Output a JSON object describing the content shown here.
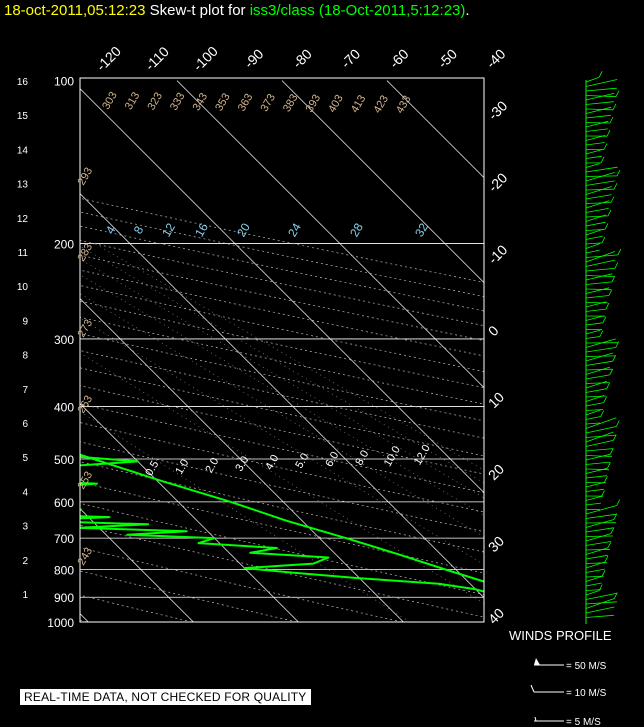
{
  "title": {
    "timestamp": "18-oct-2011,05:12:23",
    "prefix": "Skew-t plot for",
    "station": "iss3/class (18-Oct-2011,5:12:23)",
    "suffix": "."
  },
  "disclaimer": "REAL-TIME DATA, NOT CHECKED FOR QUALITY",
  "colors": {
    "sounding": "#00ff00",
    "text_yellow": "#ffff00",
    "isotherm": "#ffffff",
    "adiabat_label": "#d2b48c",
    "mixing_label": "#87ceeb"
  },
  "chart_data": {
    "type": "line",
    "pressure_ticks": [
      "100",
      "200",
      "300",
      "400",
      "500",
      "600",
      "700",
      "800",
      "900",
      "1000"
    ],
    "height_ticks": [
      "1",
      "2",
      "3",
      "4",
      "5",
      "6",
      "7",
      "8",
      "9",
      "10",
      "11",
      "12",
      "13",
      "14",
      "15",
      "16"
    ],
    "top_temp_labels": [
      "-120",
      "-110",
      "-100",
      "-90",
      "-80",
      "-70",
      "-60",
      "-50",
      "-40"
    ],
    "right_temp_labels": [
      "-30",
      "-20",
      "-10",
      "0",
      "10",
      "20",
      "30",
      "40"
    ],
    "dry_adiabat_labels": [
      "243",
      "253",
      "263",
      "273",
      "283",
      "293",
      "303",
      "313",
      "323",
      "333",
      "343",
      "353",
      "363",
      "373",
      "383",
      "393",
      "403",
      "413",
      "423",
      "433"
    ],
    "mixing_ratio_labels": [
      "4",
      "8",
      "12",
      "16",
      "20",
      "24",
      "28",
      "32"
    ],
    "moist_labels": [
      "0.5",
      "1.0",
      "2.0",
      "3.0",
      "4.0",
      "5.0",
      "6.0",
      "8.0",
      "10.0",
      "12.0"
    ],
    "series": [
      {
        "role": "temperature",
        "points": [
          [
            1000,
            23
          ],
          [
            980,
            20
          ],
          [
            950,
            17.5
          ],
          [
            930,
            15.5
          ],
          [
            900,
            15
          ],
          [
            880,
            13.5
          ],
          [
            850,
            12
          ],
          [
            800,
            9
          ],
          [
            750,
            6
          ],
          [
            700,
            2.5
          ],
          [
            650,
            -1.5
          ],
          [
            600,
            -5
          ],
          [
            550,
            -9.5
          ],
          [
            500,
            -14
          ],
          [
            450,
            -19
          ],
          [
            400,
            -25
          ],
          [
            350,
            -32
          ],
          [
            300,
            -39
          ],
          [
            250,
            -47
          ],
          [
            200,
            -55
          ],
          [
            180,
            -57
          ],
          [
            150,
            -60
          ],
          [
            125,
            -62
          ],
          [
            100,
            -64
          ]
        ]
      },
      {
        "role": "dewpoint",
        "points": [
          [
            1000,
            20
          ],
          [
            950,
            14
          ],
          [
            900,
            12
          ],
          [
            870,
            10
          ],
          [
            850,
            7
          ],
          [
            830,
            0
          ],
          [
            810,
            -6
          ],
          [
            795,
            -10
          ],
          [
            780,
            -3
          ],
          [
            760,
            -1
          ],
          [
            745,
            -8
          ],
          [
            730,
            -5
          ],
          [
            715,
            -12
          ],
          [
            700,
            -10
          ],
          [
            690,
            -18
          ],
          [
            680,
            -12
          ],
          [
            670,
            -22
          ],
          [
            660,
            -15
          ],
          [
            650,
            -26
          ],
          [
            640,
            -18
          ],
          [
            630,
            -30
          ],
          [
            620,
            -20
          ],
          [
            605,
            -44
          ],
          [
            595,
            -46
          ],
          [
            585,
            -20
          ],
          [
            575,
            -46
          ],
          [
            565,
            -22
          ],
          [
            555,
            -16
          ],
          [
            540,
            -32
          ],
          [
            520,
            -20
          ],
          [
            505,
            -10
          ],
          [
            490,
            -18
          ],
          [
            470,
            -22
          ],
          [
            460,
            -32
          ],
          [
            450,
            -36
          ],
          [
            440,
            -30
          ],
          [
            430,
            -34
          ],
          [
            410,
            -42
          ],
          [
            400,
            -44
          ],
          [
            385,
            -46
          ],
          [
            375,
            -38
          ],
          [
            360,
            -12
          ],
          [
            345,
            -8
          ],
          [
            330,
            -10
          ],
          [
            310,
            -14
          ],
          [
            290,
            -20
          ],
          [
            270,
            -24
          ],
          [
            250,
            -28
          ],
          [
            225,
            -33
          ],
          [
            205,
            -37
          ],
          [
            185,
            -42
          ],
          [
            160,
            -48
          ],
          [
            135,
            -52
          ],
          [
            115,
            -54
          ],
          [
            100,
            -57
          ]
        ]
      }
    ],
    "winds_title": "WINDS PROFILE",
    "wind_legend": [
      "= 50 M/S",
      "= 10 M/S",
      "= 5 M/S"
    ]
  }
}
